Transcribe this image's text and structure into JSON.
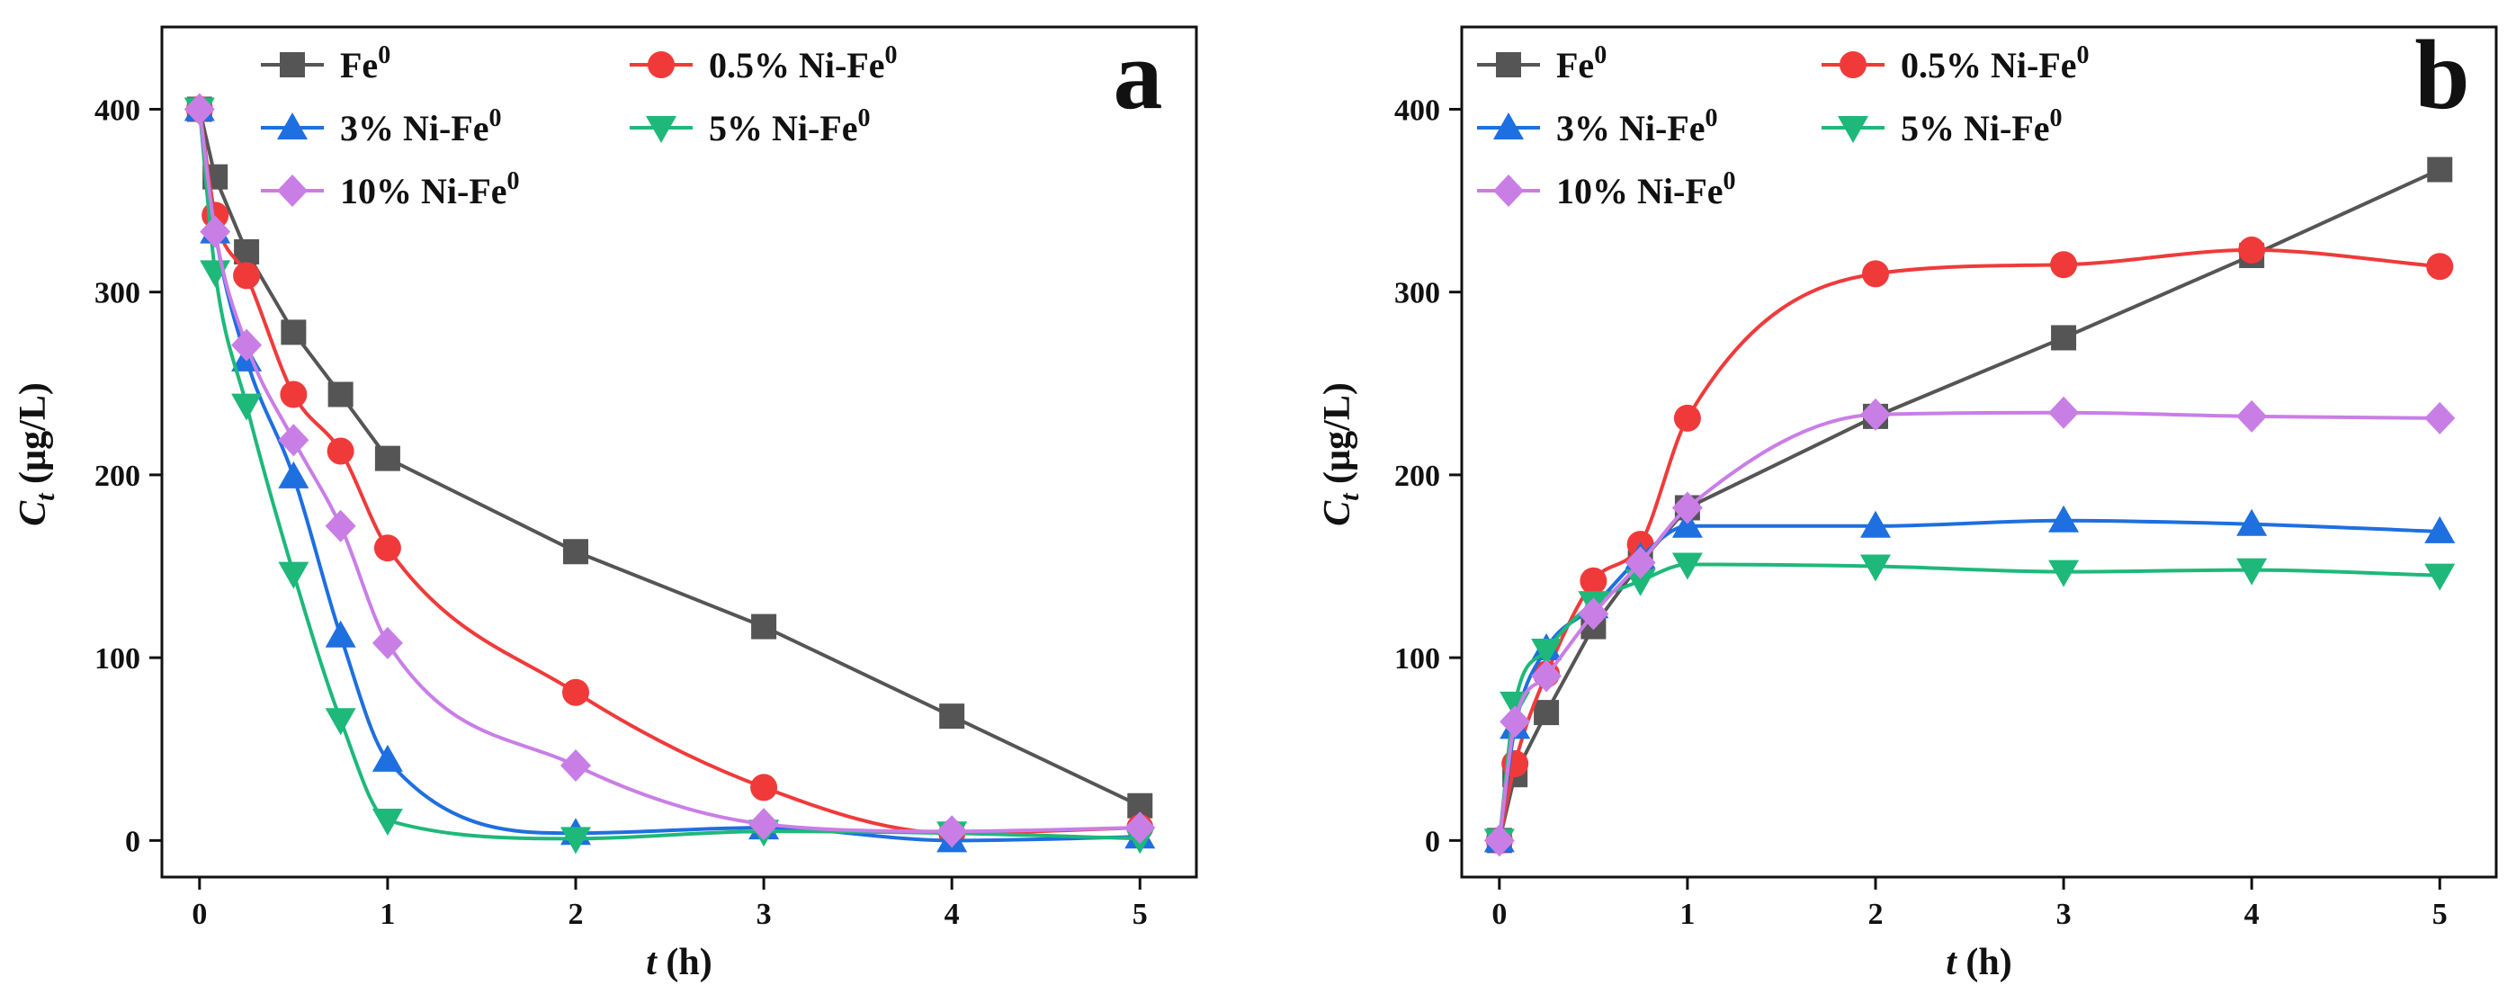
{
  "chart_data": [
    {
      "type": "scatter",
      "panel_label": "a",
      "xlabel_var": "t",
      "xlabel_unit": "(h)",
      "ylabel_var": "C",
      "ylabel_sub": "t",
      "ylabel_unit": "(µg/L)",
      "xlim": [
        -0.2,
        5.3
      ],
      "ylim": [
        -20,
        445
      ],
      "xticks": [
        0,
        1,
        2,
        3,
        4,
        5
      ],
      "yticks": [
        0,
        100,
        200,
        300,
        400
      ],
      "legend_placement": "top",
      "grid": false,
      "series": [
        {
          "name": "Fe",
          "name_sup": "0",
          "color": "#555555",
          "marker": "square",
          "fit": "line",
          "x": [
            0,
            0.083,
            0.25,
            0.5,
            0.75,
            1,
            2,
            3,
            4,
            5
          ],
          "y": [
            400,
            363,
            322,
            278,
            244,
            209,
            158,
            117,
            68,
            19
          ]
        },
        {
          "name": "0.5% Ni-Fe",
          "name_sup": "0",
          "color": "#f03a3a",
          "marker": "circle",
          "fit": "smooth",
          "x": [
            0,
            0.083,
            0.25,
            0.5,
            0.75,
            1,
            2,
            3,
            4,
            5
          ],
          "y": [
            400,
            342,
            309,
            244,
            213,
            160,
            81,
            29,
            4,
            7
          ]
        },
        {
          "name": "3% Ni-Fe",
          "name_sup": "0",
          "color": "#1e6fe0",
          "marker": "triangle-up",
          "fit": "smooth",
          "x": [
            0,
            0.083,
            0.25,
            0.5,
            0.75,
            1,
            2,
            3,
            4,
            5
          ],
          "y": [
            400,
            333,
            263,
            199,
            112,
            44,
            4,
            7,
            0,
            2
          ]
        },
        {
          "name": "5% Ni-Fe",
          "name_sup": "0",
          "color": "#1eb87a",
          "marker": "triangle-down",
          "fit": "smooth",
          "x": [
            0,
            0.083,
            0.25,
            0.5,
            0.75,
            1,
            2,
            3,
            4,
            5
          ],
          "y": [
            400,
            311,
            238,
            146,
            66,
            11,
            1,
            5,
            4,
            1
          ]
        },
        {
          "name": "10% Ni-Fe",
          "name_sup": "0",
          "color": "#c97ee6",
          "marker": "diamond",
          "fit": "smooth",
          "x": [
            0,
            0.083,
            0.25,
            0.5,
            0.75,
            1,
            2,
            3,
            4,
            5
          ],
          "y": [
            400,
            333,
            271,
            219,
            172,
            108,
            41,
            9,
            5,
            7
          ]
        }
      ]
    },
    {
      "type": "scatter",
      "panel_label": "b",
      "xlabel_var": "t",
      "xlabel_unit": "(h)",
      "ylabel_var": "C",
      "ylabel_sub": "t",
      "ylabel_unit": "(µg/L)",
      "xlim": [
        -0.2,
        5.3
      ],
      "ylim": [
        -20,
        445
      ],
      "xticks": [
        0,
        1,
        2,
        3,
        4,
        5
      ],
      "yticks": [
        0,
        100,
        200,
        300,
        400
      ],
      "legend_placement": "top-left",
      "grid": false,
      "series": [
        {
          "name": "Fe",
          "name_sup": "0",
          "color": "#555555",
          "marker": "square",
          "fit": "line",
          "x": [
            0,
            0.083,
            0.25,
            0.5,
            0.75,
            1,
            2,
            3,
            4,
            5
          ],
          "y": [
            0,
            36,
            70,
            117,
            152,
            182,
            232,
            275,
            320,
            367
          ]
        },
        {
          "name": "0.5% Ni-Fe",
          "name_sup": "0",
          "color": "#f03a3a",
          "marker": "circle",
          "fit": "smooth",
          "x": [
            0,
            0.083,
            0.25,
            0.5,
            0.75,
            1,
            2,
            3,
            4,
            5
          ],
          "y": [
            0,
            42,
            91,
            142,
            162,
            231,
            310,
            315,
            323,
            314
          ]
        },
        {
          "name": "3% Ni-Fe",
          "name_sup": "0",
          "color": "#1e6fe0",
          "marker": "triangle-up",
          "fit": "smooth",
          "x": [
            0,
            0.083,
            0.25,
            0.5,
            0.75,
            1,
            2,
            3,
            4,
            5
          ],
          "y": [
            0,
            62,
            105,
            128,
            155,
            172,
            172,
            175,
            173,
            169
          ]
        },
        {
          "name": "5% Ni-Fe",
          "name_sup": "0",
          "color": "#1eb87a",
          "marker": "triangle-down",
          "fit": "smooth",
          "x": [
            0,
            0.083,
            0.25,
            0.5,
            0.75,
            1,
            2,
            3,
            4,
            5
          ],
          "y": [
            0,
            75,
            104,
            130,
            142,
            151,
            150,
            147,
            148,
            145
          ]
        },
        {
          "name": "10% Ni-Fe",
          "name_sup": "0",
          "color": "#c97ee6",
          "marker": "diamond",
          "fit": "smooth",
          "x": [
            0,
            0.083,
            0.25,
            0.5,
            0.75,
            1,
            2,
            3,
            4,
            5
          ],
          "y": [
            0,
            65,
            90,
            124,
            152,
            182,
            233,
            234,
            232,
            231
          ]
        }
      ]
    }
  ]
}
